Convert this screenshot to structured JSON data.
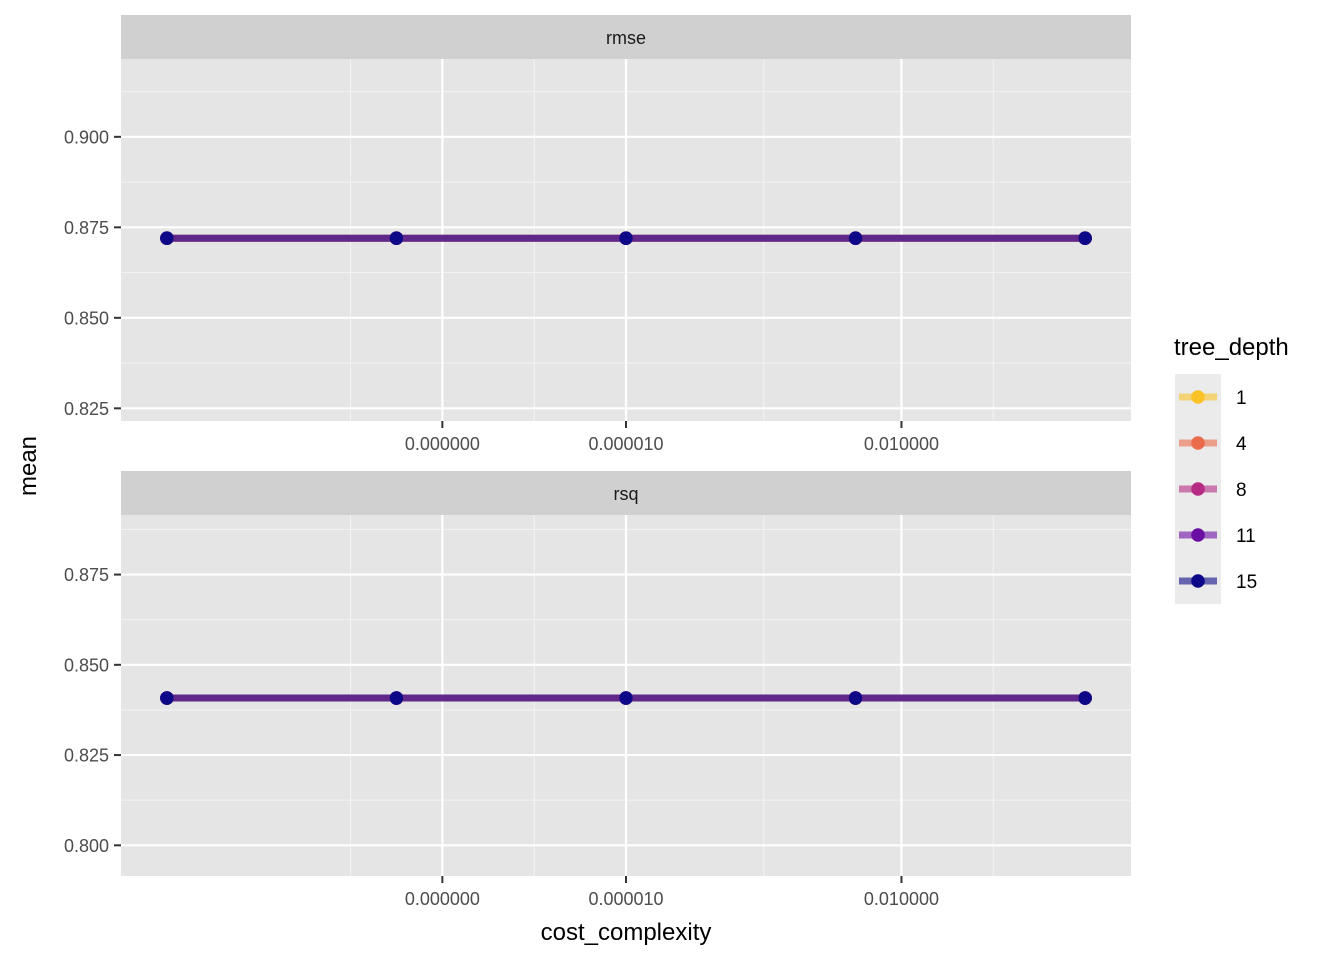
{
  "chart_data": {
    "type": "line",
    "xlabel": "cost_complexity",
    "ylabel": "mean",
    "x_scale": "log10",
    "x": [
      1e-10,
      3.16e-08,
      1e-05,
      0.00316,
      1
    ],
    "x_tick_labels": [
      "0.000000",
      "0.000010",
      "0.010000"
    ],
    "x_tick_values": [
      1e-07,
      1e-05,
      0.01
    ],
    "legend": {
      "title": "tree_depth",
      "position": "right",
      "entries": [
        "1",
        "4",
        "8",
        "11",
        "15"
      ]
    },
    "colors": {
      "1": "#F9C328",
      "4": "#EB6C4A",
      "8": "#B52B83",
      "11": "#6B0EA3",
      "15": "#0D0887",
      "combined_line": "#3D0A78",
      "panel_bg": "#E5E5E5",
      "strip_bg": "#D0D0D0",
      "legend_key_bg": "#EBEBEB"
    },
    "grid": true,
    "panels": [
      {
        "strip": "rmse",
        "ylim": [
          0.8215,
          0.9215
        ],
        "y_ticks": [
          0.825,
          0.85,
          0.875,
          0.9
        ],
        "y_tick_labels": [
          "0.825",
          "0.850",
          "0.875",
          "0.900"
        ],
        "series": [
          {
            "name": "1",
            "values": [
              0.872,
              0.872,
              0.872,
              0.872,
              0.872
            ]
          },
          {
            "name": "4",
            "values": [
              0.872,
              0.872,
              0.872,
              0.872,
              0.872
            ]
          },
          {
            "name": "8",
            "values": [
              0.872,
              0.872,
              0.872,
              0.872,
              0.872
            ]
          },
          {
            "name": "11",
            "values": [
              0.872,
              0.872,
              0.872,
              0.872,
              0.872
            ]
          },
          {
            "name": "15",
            "values": [
              0.872,
              0.872,
              0.872,
              0.872,
              0.872
            ]
          }
        ]
      },
      {
        "strip": "rsq",
        "ylim": [
          0.7915,
          0.8915
        ],
        "y_ticks": [
          0.8,
          0.825,
          0.85,
          0.875
        ],
        "y_tick_labels": [
          "0.800",
          "0.825",
          "0.850",
          "0.875"
        ],
        "series": [
          {
            "name": "1",
            "values": [
              0.8408,
              0.8408,
              0.8408,
              0.8408,
              0.8408
            ]
          },
          {
            "name": "4",
            "values": [
              0.8408,
              0.8408,
              0.8408,
              0.8408,
              0.8408
            ]
          },
          {
            "name": "8",
            "values": [
              0.8408,
              0.8408,
              0.8408,
              0.8408,
              0.8408
            ]
          },
          {
            "name": "11",
            "values": [
              0.8408,
              0.8408,
              0.8408,
              0.8408,
              0.8408
            ]
          },
          {
            "name": "15",
            "values": [
              0.8408,
              0.8408,
              0.8408,
              0.8408,
              0.8408
            ]
          }
        ]
      }
    ]
  }
}
